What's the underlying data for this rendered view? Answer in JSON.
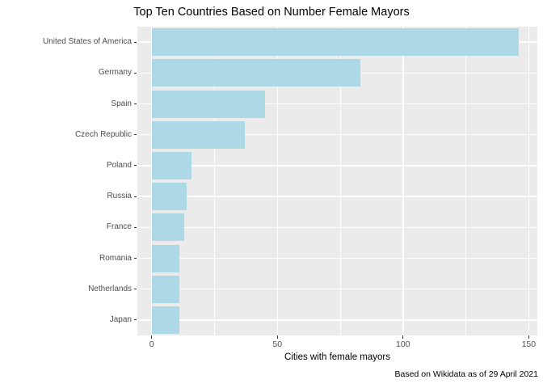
{
  "title": "Top Ten Countries Based on Number Female Mayors",
  "caption": "Based on Wikidata as of 29 April 2021",
  "chart_data": {
    "type": "bar",
    "orientation": "horizontal",
    "title": "Top Ten Countries Based on Number Female Mayors",
    "categories": [
      "United States of America",
      "Germany",
      "Spain",
      "Czech Republic",
      "Poland",
      "Russia",
      "France",
      "Romania",
      "Netherlands",
      "Japan"
    ],
    "values": [
      146,
      83,
      45,
      37,
      16,
      14,
      13,
      11,
      11,
      11
    ],
    "xlabel": "Cities with female mayors",
    "ylabel": "",
    "caption": "Based on Wikidata as of 29 April 2021",
    "xlim": [
      0,
      150
    ],
    "x_ticks": [
      0,
      50,
      100,
      150
    ],
    "x_minor_ticks": [
      25,
      75,
      125
    ],
    "grid": true,
    "legend": false,
    "bar_color": "#ADD8E6",
    "panel_bg": "#EBEBEB",
    "grid_color": "#FFFFFF",
    "axis_text_color": "#4D4D4D"
  }
}
